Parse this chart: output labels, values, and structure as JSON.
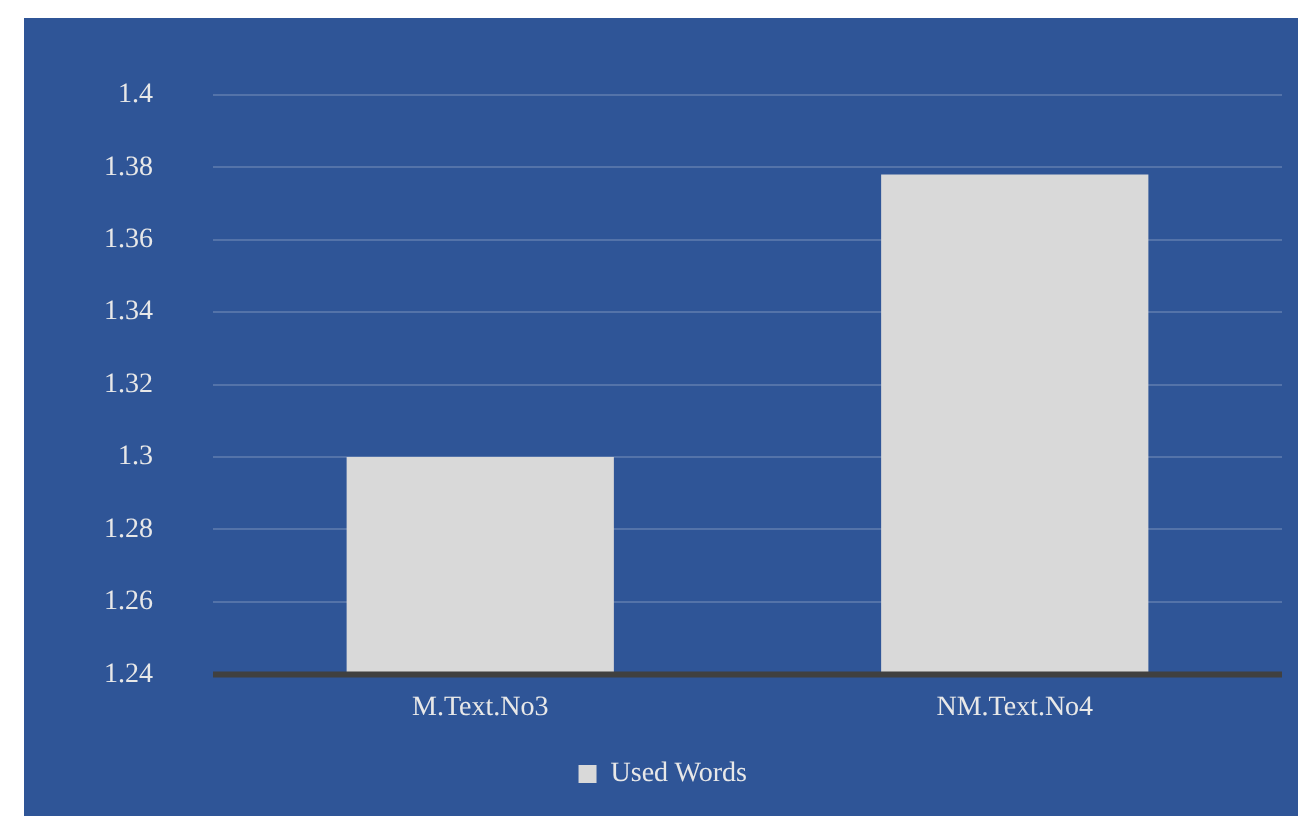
{
  "chart_data": {
    "type": "bar",
    "categories": [
      "M.Text.No3",
      "NM.Text.No4"
    ],
    "series": [
      {
        "name": "Used Words",
        "color": "#d9d9d9",
        "values": [
          1.3,
          1.378
        ]
      }
    ],
    "ylim": [
      1.24,
      1.4
    ],
    "yticks": [
      1.24,
      1.26,
      1.28,
      1.3,
      1.32,
      1.34,
      1.36,
      1.38,
      1.4
    ],
    "grid": "y",
    "legend": "bottom"
  }
}
